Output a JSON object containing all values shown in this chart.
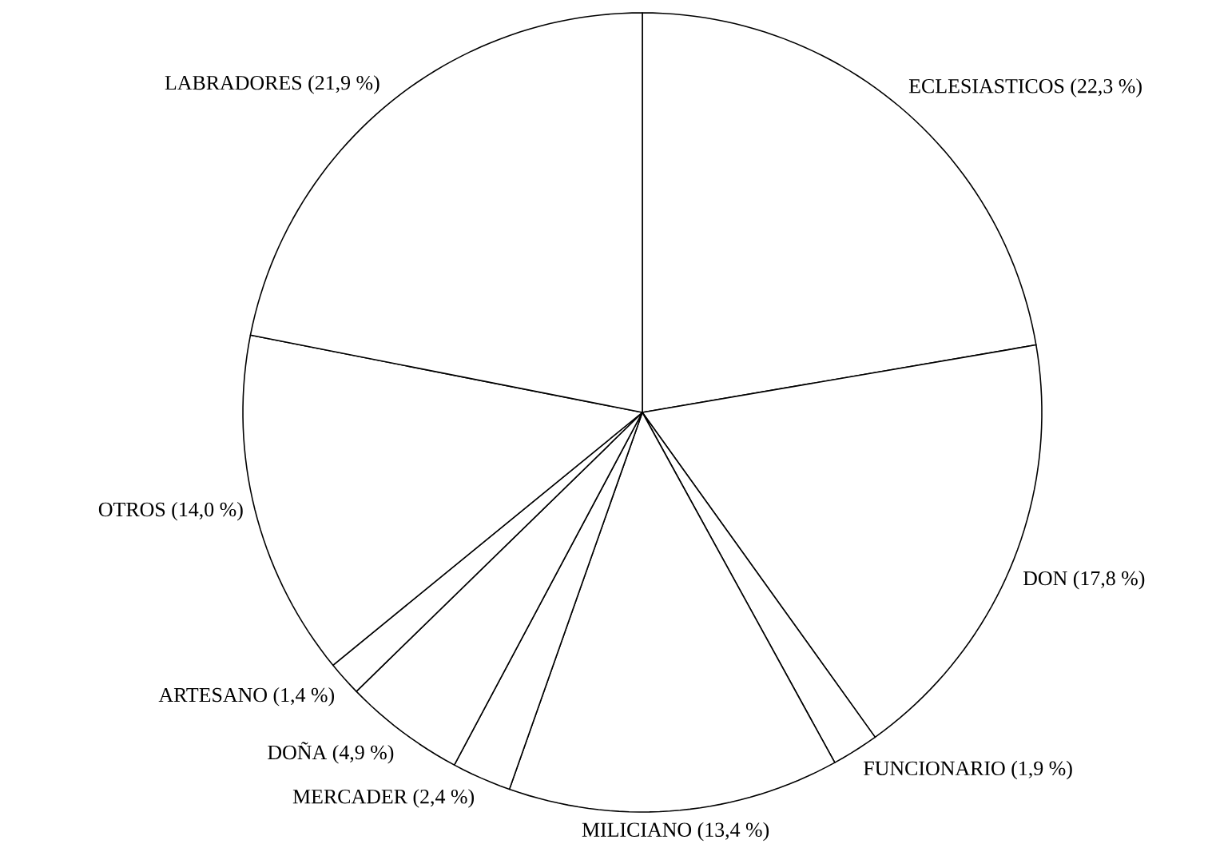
{
  "chart_data": {
    "type": "pie",
    "categories": [
      "ECLESIASTICOS",
      "DON",
      "FUNCIONARIO",
      "MILICIANO",
      "MERCADER",
      "DOÑA",
      "ARTESANO",
      "OTROS",
      "LABRADORES"
    ],
    "values": [
      22.3,
      17.8,
      1.9,
      13.4,
      2.4,
      4.9,
      1.4,
      14.0,
      21.9
    ],
    "value_labels": [
      "(22,3 %)",
      "(17,8 %)",
      "(1,9 %)",
      "(13,4 %)",
      "(2,4 %)",
      "(4,9 %)",
      "(1,4 %)",
      "(14,0 %)",
      "(21,9 %)"
    ],
    "colors": [
      "#ffffff",
      "#ffffff",
      "#ffffff",
      "#ffffff",
      "#ffffff",
      "#ffffff",
      "#ffffff",
      "#ffffff",
      "#ffffff"
    ]
  }
}
